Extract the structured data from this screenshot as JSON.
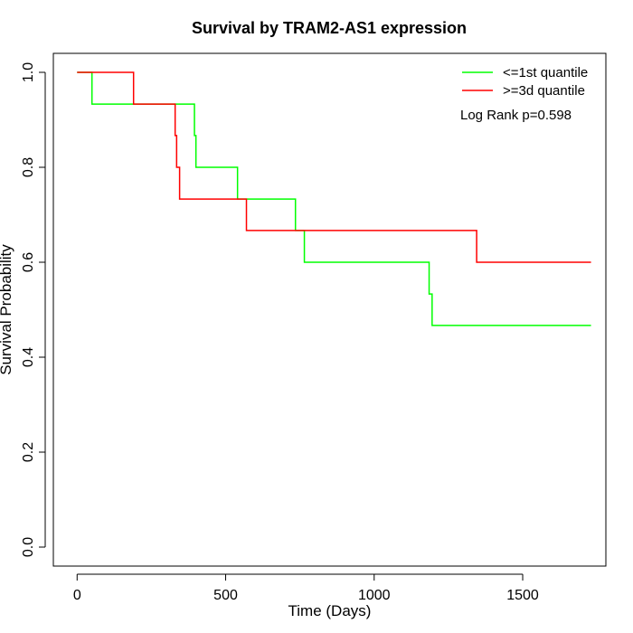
{
  "chart_data": {
    "type": "line",
    "title": "Survival by TRAM2-AS1 expression",
    "xlabel": "Time (Days)",
    "ylabel": "Survival Probability",
    "xlim": [
      -80,
      1780
    ],
    "ylim": [
      -0.04,
      1.04
    ],
    "x_ticks": [
      0,
      500,
      1000,
      1500
    ],
    "y_ticks": [
      0.0,
      0.2,
      0.4,
      0.6,
      0.8,
      1.0
    ],
    "x_tick_labels": [
      "0",
      "500",
      "1000",
      "1500"
    ],
    "y_tick_labels": [
      "0.0",
      "0.2",
      "0.4",
      "0.6",
      "0.8",
      "1.0"
    ],
    "step": true,
    "legend_position": "top-right",
    "annotation": "Log Rank p=0.598",
    "series": [
      {
        "name": "<=1st quantile",
        "color": "#00ff00",
        "x": [
          0,
          50,
          395,
          400,
          540,
          735,
          765,
          1185,
          1195,
          1730
        ],
        "y": [
          1.0,
          0.933,
          0.867,
          0.8,
          0.733,
          0.667,
          0.6,
          0.533,
          0.467,
          0.467
        ]
      },
      {
        "name": ">=3d quantile",
        "color": "#ff0000",
        "x": [
          0,
          190,
          330,
          335,
          345,
          570,
          1345,
          1730
        ],
        "y": [
          1.0,
          0.933,
          0.867,
          0.8,
          0.733,
          0.667,
          0.6,
          0.6
        ]
      }
    ]
  }
}
